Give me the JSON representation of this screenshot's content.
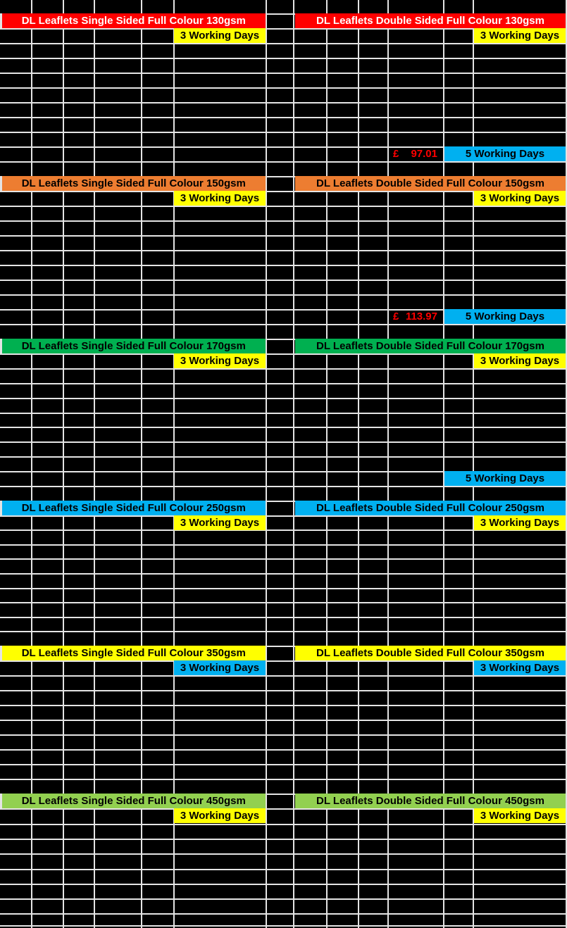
{
  "sheet": {
    "description": "DL Leaflets price grid spreadsheet",
    "background": "#000000",
    "gridline_color": "#E4E4E4"
  },
  "colors": {
    "red": "#FF0000",
    "orange": "#ED7D31",
    "green": "#00B050",
    "cyan": "#00B0F0",
    "yellow": "#FFFF00",
    "light_green": "#92D050",
    "price_text": "#FF0000",
    "header_text_on_red": "#FFFFFF",
    "header_text_dark": "#000000"
  },
  "sections": [
    {
      "gsm": "130gsm",
      "left_header": "DL Leaflets Single Sided Full Colour 130gsm",
      "right_header": "DL Leaflets Double Sided Full Colour 130gsm",
      "header_bg": "#FF0000",
      "header_fg": "#FFFFFF",
      "lead_badge_label": "3 Working Days",
      "lead_badge_bg": "#FFFF00",
      "five_row": {
        "currency": "£",
        "price": "97.01",
        "price_color": "#FF0000",
        "label": "5 Working Days",
        "bg": "#00B0F0"
      }
    },
    {
      "gsm": "150gsm",
      "left_header": "DL Leaflets Single Sided Full Colour 150gsm",
      "right_header": "DL Leaflets Double Sided Full Colour 150gsm",
      "header_bg": "#ED7D31",
      "header_fg": "#000000",
      "lead_badge_label": "3 Working Days",
      "lead_badge_bg": "#FFFF00",
      "five_row": {
        "currency": "£",
        "price": "113.97",
        "price_color": "#FF0000",
        "label": "5 Working Days",
        "bg": "#00B0F0"
      }
    },
    {
      "gsm": "170gsm",
      "left_header": "DL Leaflets Single Sided Full Colour 170gsm",
      "right_header": "DL Leaflets Double Sided Full Colour 170gsm",
      "header_bg": "#00B050",
      "header_fg": "#000000",
      "lead_badge_label": "3 Working Days",
      "lead_badge_bg": "#FFFF00",
      "five_row": {
        "currency": "",
        "price": "",
        "price_color": "#FF0000",
        "label": "5 Working Days",
        "bg": "#00B0F0"
      }
    },
    {
      "gsm": "250gsm",
      "left_header": "DL Leaflets Single Sided Full Colour 250gsm",
      "right_header": "DL Leaflets Double Sided Full Colour 250gsm",
      "header_bg": "#00B0F0",
      "header_fg": "#000000",
      "lead_badge_label": "3 Working Days",
      "lead_badge_bg": "#FFFF00"
    },
    {
      "gsm": "350gsm",
      "left_header": "DL Leaflets Single Sided Full Colour 350gsm",
      "right_header": "DL Leaflets Double Sided Full Colour 350gsm",
      "header_bg": "#FFFF00",
      "header_fg": "#000000",
      "lead_badge_label": "3 Working Days",
      "lead_badge_bg": "#00B0F0"
    },
    {
      "gsm": "450gsm",
      "left_header": "DL Leaflets Single Sided Full Colour 450gsm",
      "right_header": "DL Leaflets Double Sided Full Colour 450gsm",
      "header_bg": "#92D050",
      "header_fg": "#000000",
      "lead_badge_label": "3 Working Days",
      "lead_badge_bg": "#FFFF00"
    }
  ]
}
